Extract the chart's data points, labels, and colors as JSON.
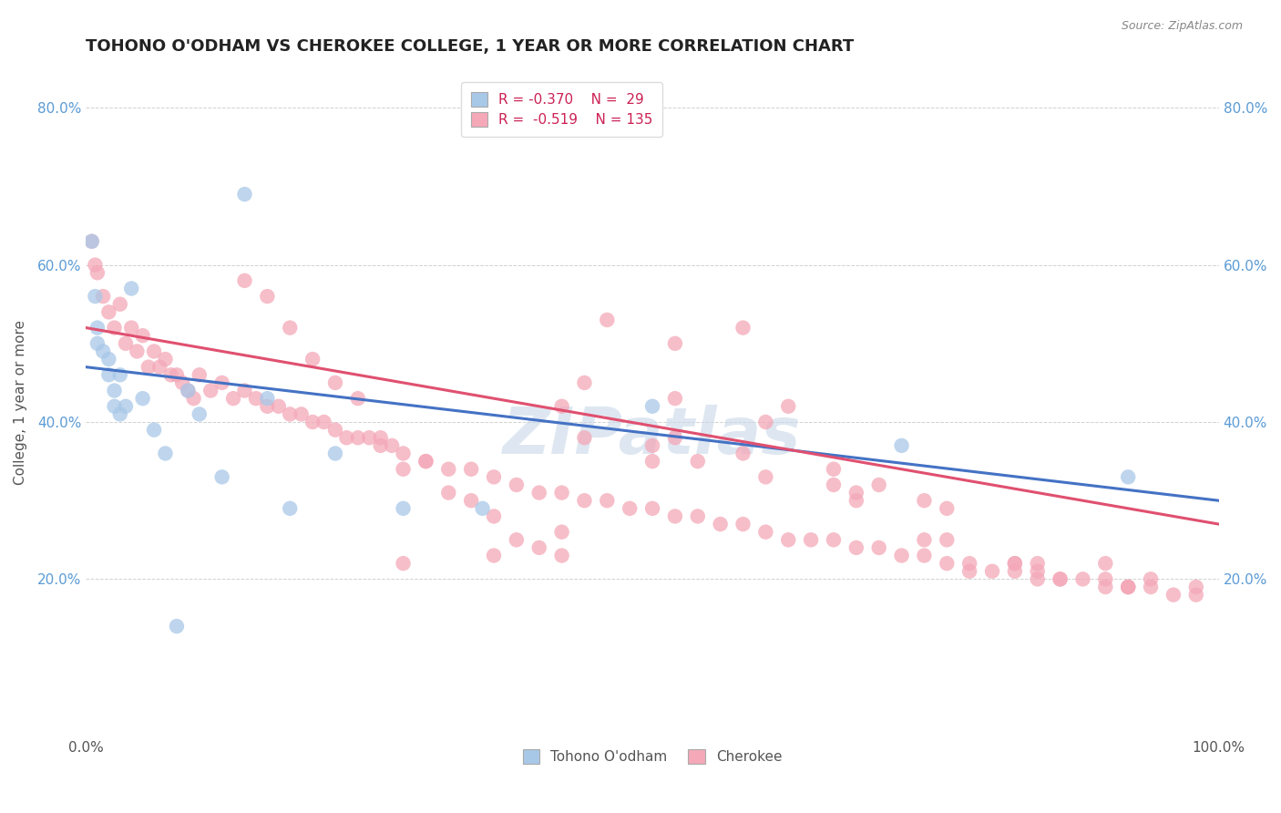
{
  "title": "TOHONO O'ODHAM VS CHEROKEE COLLEGE, 1 YEAR OR MORE CORRELATION CHART",
  "source": "Source: ZipAtlas.com",
  "ylabel": "College, 1 year or more",
  "xlim": [
    0.0,
    1.0
  ],
  "ylim": [
    0.0,
    0.85
  ],
  "xticks": [
    0.0,
    0.2,
    0.4,
    0.6,
    0.8,
    1.0
  ],
  "xticklabels": [
    "0.0%",
    "",
    "",
    "",
    "",
    "100.0%"
  ],
  "yticks": [
    0.0,
    0.2,
    0.4,
    0.6,
    0.8
  ],
  "yticklabels": [
    "",
    "20.0%",
    "40.0%",
    "60.0%",
    "80.0%"
  ],
  "color_tohono": "#a8c8e8",
  "color_cherokee": "#f4a8b8",
  "line_color_tohono": "#4472c4",
  "line_color_cherokee": "#e05070",
  "watermark": "ZIPatlas",
  "tohono_x": [
    0.005,
    0.008,
    0.01,
    0.01,
    0.015,
    0.02,
    0.02,
    0.025,
    0.025,
    0.03,
    0.03,
    0.035,
    0.04,
    0.05,
    0.06,
    0.07,
    0.08,
    0.09,
    0.1,
    0.12,
    0.14,
    0.16,
    0.18,
    0.22,
    0.28,
    0.35,
    0.5,
    0.72,
    0.92
  ],
  "tohono_y": [
    0.63,
    0.56,
    0.52,
    0.5,
    0.49,
    0.48,
    0.46,
    0.44,
    0.42,
    0.46,
    0.41,
    0.42,
    0.57,
    0.43,
    0.39,
    0.36,
    0.14,
    0.44,
    0.41,
    0.33,
    0.69,
    0.43,
    0.29,
    0.36,
    0.29,
    0.29,
    0.42,
    0.37,
    0.33
  ],
  "cherokee_x": [
    0.005,
    0.008,
    0.01,
    0.015,
    0.02,
    0.025,
    0.03,
    0.035,
    0.04,
    0.045,
    0.05,
    0.055,
    0.06,
    0.065,
    0.07,
    0.075,
    0.08,
    0.085,
    0.09,
    0.095,
    0.1,
    0.11,
    0.12,
    0.13,
    0.14,
    0.15,
    0.16,
    0.17,
    0.18,
    0.19,
    0.2,
    0.21,
    0.22,
    0.23,
    0.24,
    0.25,
    0.26,
    0.27,
    0.28,
    0.3,
    0.32,
    0.34,
    0.36,
    0.38,
    0.4,
    0.42,
    0.44,
    0.46,
    0.48,
    0.5,
    0.52,
    0.54,
    0.56,
    0.58,
    0.6,
    0.62,
    0.64,
    0.66,
    0.68,
    0.7,
    0.72,
    0.74,
    0.76,
    0.78,
    0.8,
    0.82,
    0.84,
    0.86,
    0.88,
    0.9,
    0.92,
    0.94,
    0.96,
    0.98,
    0.42,
    0.44,
    0.46,
    0.5,
    0.54,
    0.58,
    0.62,
    0.66,
    0.7,
    0.74,
    0.78,
    0.82,
    0.86,
    0.9,
    0.94,
    0.98,
    0.14,
    0.16,
    0.18,
    0.2,
    0.22,
    0.24,
    0.26,
    0.28,
    0.3,
    0.32,
    0.34,
    0.36,
    0.38,
    0.4,
    0.42,
    0.5,
    0.58,
    0.66,
    0.74,
    0.82,
    0.9,
    0.52,
    0.6,
    0.68,
    0.76,
    0.84,
    0.92,
    0.44,
    0.52,
    0.6,
    0.68,
    0.76,
    0.84,
    0.92,
    0.28,
    0.36,
    0.42,
    0.52
  ],
  "cherokee_y": [
    0.63,
    0.6,
    0.59,
    0.56,
    0.54,
    0.52,
    0.55,
    0.5,
    0.52,
    0.49,
    0.51,
    0.47,
    0.49,
    0.47,
    0.48,
    0.46,
    0.46,
    0.45,
    0.44,
    0.43,
    0.46,
    0.44,
    0.45,
    0.43,
    0.44,
    0.43,
    0.42,
    0.42,
    0.41,
    0.41,
    0.4,
    0.4,
    0.39,
    0.38,
    0.38,
    0.38,
    0.37,
    0.37,
    0.36,
    0.35,
    0.34,
    0.34,
    0.33,
    0.32,
    0.31,
    0.31,
    0.3,
    0.3,
    0.29,
    0.29,
    0.28,
    0.28,
    0.27,
    0.27,
    0.26,
    0.25,
    0.25,
    0.25,
    0.24,
    0.24,
    0.23,
    0.23,
    0.22,
    0.22,
    0.21,
    0.21,
    0.21,
    0.2,
    0.2,
    0.19,
    0.19,
    0.19,
    0.18,
    0.18,
    0.42,
    0.38,
    0.53,
    0.37,
    0.35,
    0.52,
    0.42,
    0.32,
    0.32,
    0.3,
    0.21,
    0.22,
    0.2,
    0.2,
    0.2,
    0.19,
    0.58,
    0.56,
    0.52,
    0.48,
    0.45,
    0.43,
    0.38,
    0.34,
    0.35,
    0.31,
    0.3,
    0.28,
    0.25,
    0.24,
    0.23,
    0.35,
    0.36,
    0.34,
    0.25,
    0.22,
    0.22,
    0.5,
    0.4,
    0.3,
    0.25,
    0.2,
    0.19,
    0.45,
    0.43,
    0.33,
    0.31,
    0.29,
    0.22,
    0.19,
    0.22,
    0.23,
    0.26,
    0.38
  ]
}
